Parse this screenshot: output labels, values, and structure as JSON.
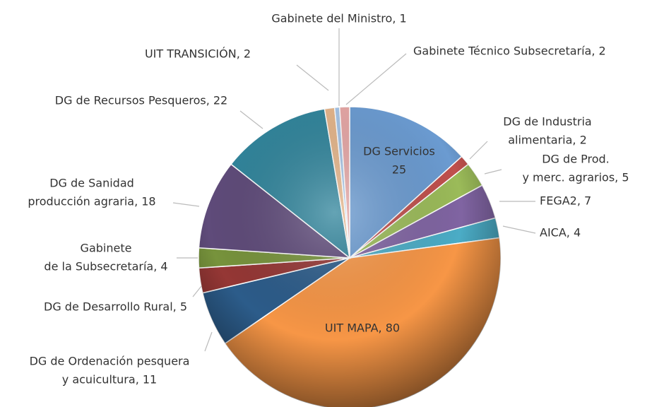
{
  "chart_data": {
    "type": "pie",
    "values": [
      25,
      2,
      5,
      7,
      4,
      80,
      11,
      5,
      4,
      18,
      22,
      2,
      1,
      2
    ],
    "value_labels": [
      [
        "DG Servicios",
        "25"
      ],
      [
        "DG de Industria",
        "alimentaria, 2"
      ],
      [
        "DG de Prod.",
        "y merc. agrarios, 5"
      ],
      [
        "FEGA2, 7"
      ],
      [
        "AICA, 4"
      ],
      [
        "UIT MAPA, 80"
      ],
      [
        "DG de Ordenación pesquera",
        "y acuicultura, 11"
      ],
      [
        "DG de Desarrollo Rural, 5"
      ],
      [
        "Gabinete",
        "de la Subsecretaría, 4"
      ],
      [
        "DG de Sanidad",
        "producción agraria, 18"
      ],
      [
        "DG de Recursos Pesqueros, 22"
      ],
      [
        "UIT TRANSICIÓN, 2"
      ],
      [
        "Gabinete del Ministro, 1"
      ],
      [
        "Gabinete Técnico Subsecretaría, 2"
      ]
    ],
    "colors": [
      "#6b9bd1",
      "#c0504d",
      "#9bbb59",
      "#8064a2",
      "#4bacc6",
      "#f79646",
      "#2c5c8a",
      "#953735",
      "#77933c",
      "#5f4b7a",
      "#31859c",
      "#e5b58a",
      "#a6c4e6",
      "#e6a7a6"
    ]
  }
}
